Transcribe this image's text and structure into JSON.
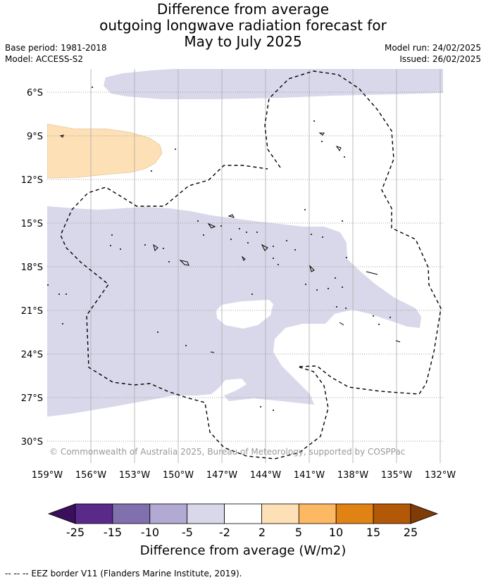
{
  "title_lines": [
    "Difference from average",
    "outgoing longwave radiation forecast for",
    "May to July 2025"
  ],
  "meta_left": [
    "Base period: 1981-2018",
    "Model: ACCESS-S2"
  ],
  "meta_right": [
    "Model run: 24/02/2025",
    "Issued: 26/02/2025"
  ],
  "map": {
    "lon_ticks": [
      "159°W",
      "156°W",
      "153°W",
      "150°W",
      "147°W",
      "144°W",
      "141°W",
      "138°W",
      "135°W",
      "132°W"
    ],
    "lat_ticks": [
      "6°S",
      "9°S",
      "12°S",
      "15°S",
      "18°S",
      "21°S",
      "24°S",
      "27°S",
      "30°S"
    ],
    "lon_range_deg": [
      -159,
      -132
    ],
    "lat_range_deg": [
      -4.5,
      -31.5
    ],
    "copyright": "© Commonwealth of Australia 2025, Bureau of Meteorology, supported by COSPPac",
    "gridlines": true
  },
  "colorbar": {
    "label": "Difference from average (W/m2)",
    "tick_labels": [
      "-25",
      "-15",
      "-10",
      "-5",
      "-2",
      "2",
      "5",
      "10",
      "15",
      "25"
    ],
    "bins": [
      {
        "from": -25,
        "to": -15,
        "color": "#5a2a8a"
      },
      {
        "from": -15,
        "to": -10,
        "color": "#8170ae"
      },
      {
        "from": -10,
        "to": -5,
        "color": "#b2aad2"
      },
      {
        "from": -5,
        "to": -2,
        "color": "#d8d8ea"
      },
      {
        "from": -2,
        "to": 2,
        "color": "#ffffff"
      },
      {
        "from": 2,
        "to": 5,
        "color": "#fde0b6"
      },
      {
        "from": 5,
        "to": 10,
        "color": "#fdb863"
      },
      {
        "from": 10,
        "to": 15,
        "color": "#e08214"
      },
      {
        "from": 15,
        "to": 25,
        "color": "#b35806"
      }
    ],
    "under_color": "#3b0f5c",
    "over_color": "#7f3b08"
  },
  "footer": "-- -- -- EEZ border V11 (Flanders Marine Institute, 2019)."
}
